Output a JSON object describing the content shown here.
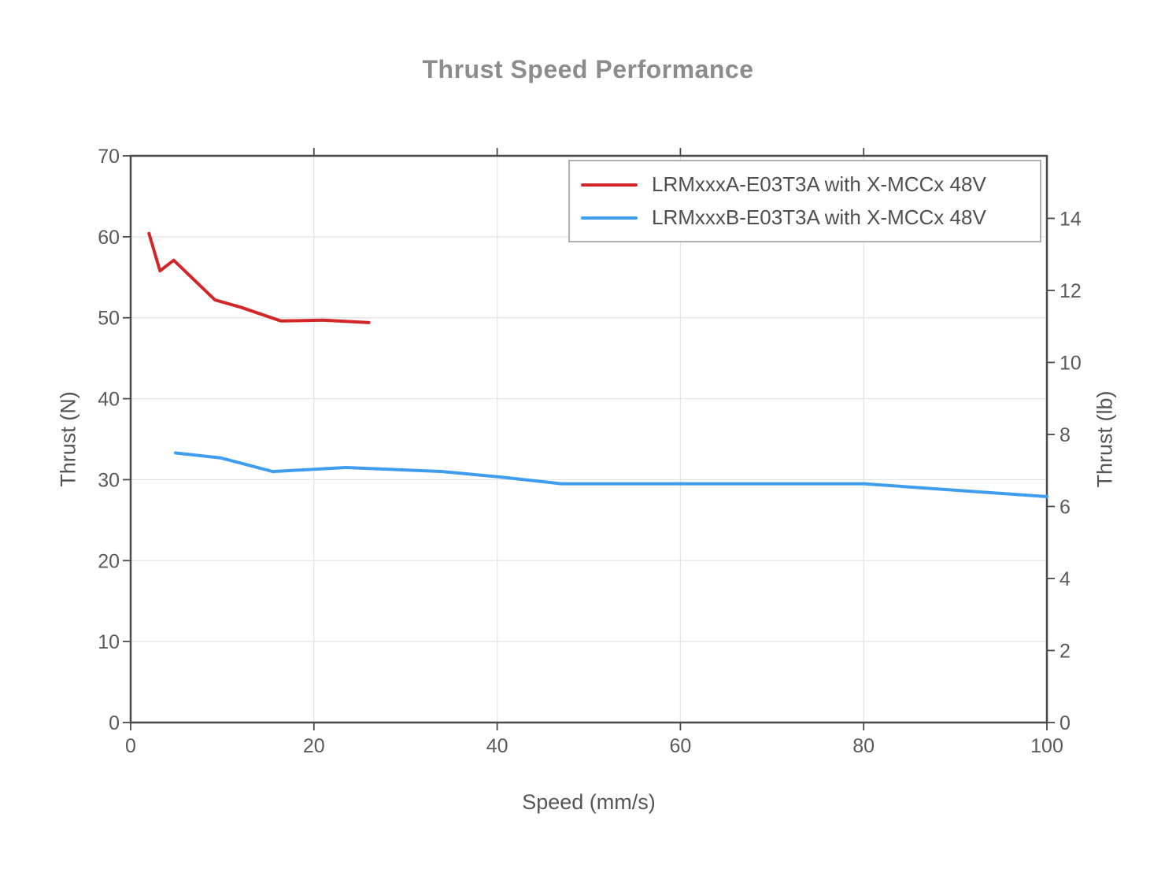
{
  "chart_data": {
    "type": "line",
    "title": "Thrust Speed Performance",
    "xlabel": "Speed (mm/s)",
    "ylabel_left": "Thrust (N)",
    "ylabel_right": "Thrust (lb)",
    "xlim": [
      0,
      100
    ],
    "ylim_n": [
      0,
      70
    ],
    "x_ticks": [
      0,
      20,
      40,
      60,
      80,
      100
    ],
    "y_ticks_n": [
      0,
      10,
      20,
      30,
      40,
      50,
      60,
      70
    ],
    "y_ticks_lb": [
      0,
      2,
      4,
      6,
      8,
      10,
      12,
      14
    ],
    "newtons_per_lb": 4.44822,
    "grid": true,
    "legend_position": "top-right-inside",
    "series": [
      {
        "name": "LRMxxxA-E03T3A with X-MCCx 48V",
        "color": "#d22629",
        "x": [
          2,
          3.2,
          4.7,
          9.2,
          12,
          16.4,
          21,
          26
        ],
        "y": [
          60.4,
          55.8,
          57.1,
          52.2,
          51.3,
          49.6,
          49.7,
          49.4
        ]
      },
      {
        "name": "LRMxxxB-E03T3A with X-MCCx 48V",
        "color": "#3f9df0",
        "x": [
          4.9,
          9.8,
          15.5,
          23.5,
          34,
          40.5,
          47,
          60,
          80,
          100
        ],
        "y": [
          33.3,
          32.7,
          31.0,
          31.5,
          31.0,
          30.3,
          29.5,
          29.5,
          29.5,
          27.9
        ]
      }
    ]
  },
  "colors": {
    "axis_box": "#4a4a4a",
    "tick_text": "#5a5a5a",
    "gridline": "#e3e3e3",
    "title_text": "#8c8c8c",
    "legend_border": "#b0b0b0"
  }
}
